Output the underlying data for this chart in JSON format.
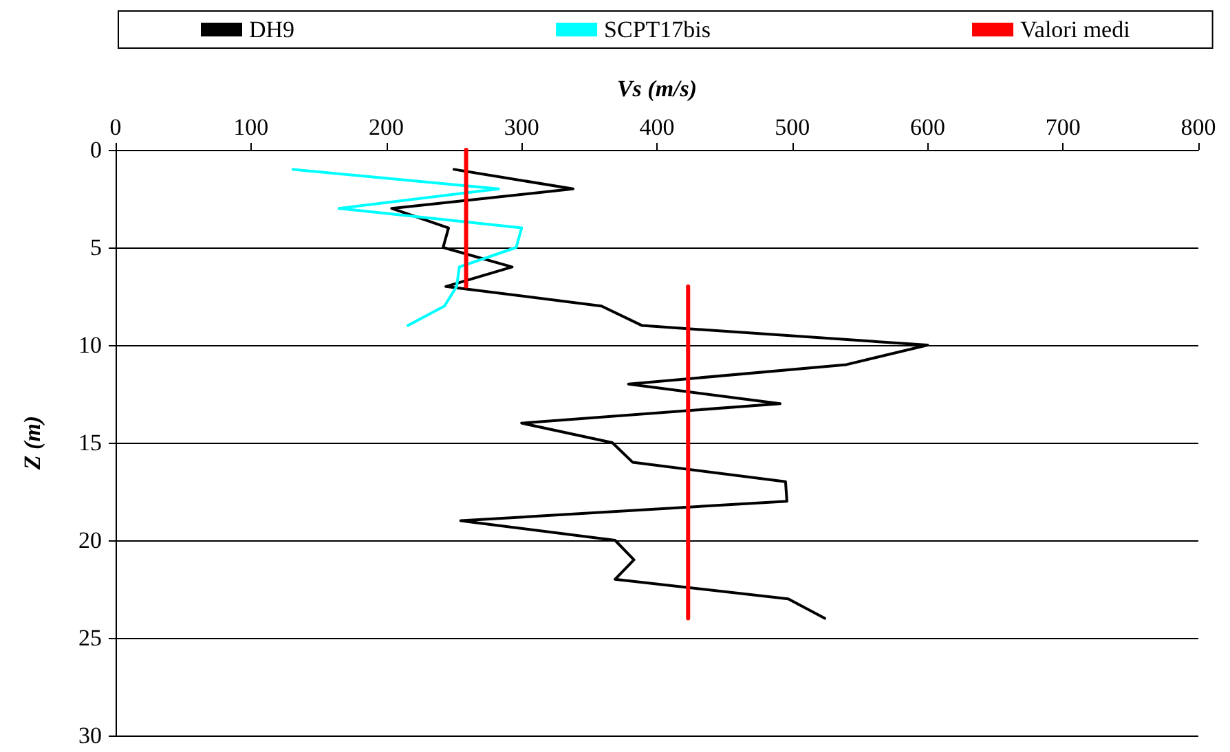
{
  "chart_data": {
    "type": "line",
    "xlabel": "Vs (m/s)",
    "ylabel": "Z (m)",
    "xlim": [
      0,
      800
    ],
    "xticks": [
      0,
      100,
      200,
      300,
      400,
      500,
      600,
      700,
      800
    ],
    "ylim": [
      30,
      0
    ],
    "yticks": [
      0,
      5,
      10,
      15,
      20,
      25,
      30
    ],
    "grid": "y",
    "legend": "top",
    "marker": "none",
    "line_style": "solid",
    "series": [
      {
        "name": "DH9",
        "color": "#000000",
        "x": [
          250,
          338,
          204,
          246,
          242,
          293,
          244,
          359,
          389,
          600,
          540,
          379,
          491,
          300,
          367,
          382,
          495,
          496,
          255,
          369,
          383,
          369,
          497,
          524
        ],
        "values": [
          1,
          2,
          3,
          4,
          5,
          6,
          7,
          8,
          9,
          10,
          11,
          12,
          13,
          14,
          15,
          16,
          17,
          18,
          19,
          20,
          21,
          22,
          23,
          24
        ]
      },
      {
        "name": "SCPT17bis",
        "color": "#00ffff",
        "x": [
          131,
          283,
          165,
          300,
          296,
          254,
          252,
          243,
          216
        ],
        "values": [
          1,
          2,
          3,
          4,
          5,
          6,
          7,
          8,
          9
        ]
      },
      {
        "name": "Valori medi",
        "color": "#ff0000",
        "x": [
          259,
          259,
          null,
          423,
          423
        ],
        "values": [
          0,
          7,
          null,
          7,
          24
        ]
      }
    ]
  }
}
